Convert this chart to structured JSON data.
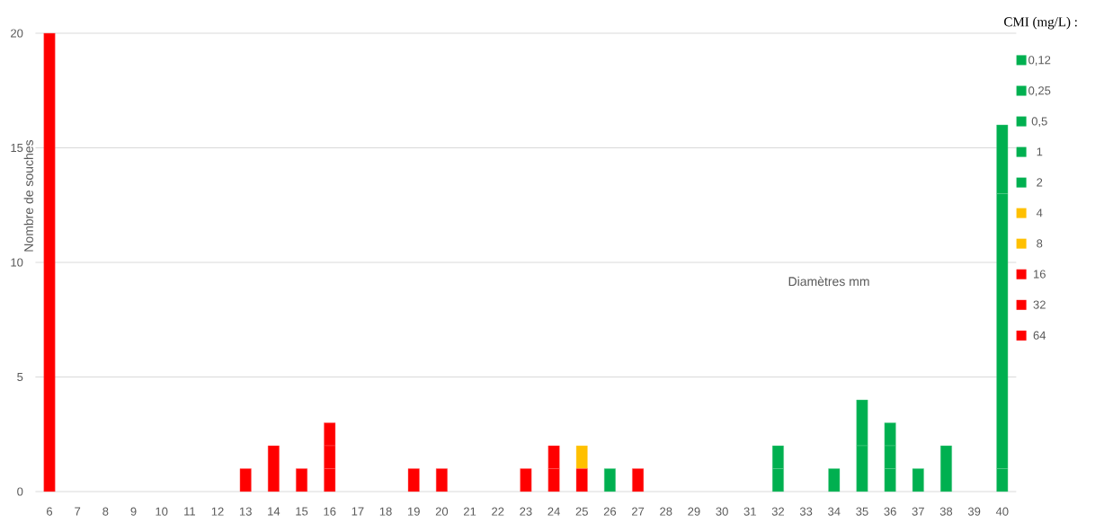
{
  "chart_data": {
    "type": "bar",
    "stacked": true,
    "xlabel": "Diamètres mm",
    "ylabel": "Nombre de souches",
    "legend_title": "CMI (mg/L) :",
    "categories": [
      "6",
      "7",
      "8",
      "9",
      "10",
      "11",
      "12",
      "13",
      "14",
      "15",
      "16",
      "17",
      "18",
      "19",
      "20",
      "21",
      "22",
      "23",
      "24",
      "25",
      "26",
      "27",
      "28",
      "29",
      "30",
      "31",
      "32",
      "33",
      "34",
      "35",
      "36",
      "37",
      "38",
      "39",
      "40"
    ],
    "ylim": [
      0,
      20
    ],
    "yticks": [
      0,
      5,
      10,
      15,
      20
    ],
    "grid": "y",
    "legend": "right",
    "series": [
      {
        "name": "64",
        "color": "#ff0000",
        "values": [
          20,
          null,
          null,
          null,
          null,
          null,
          null,
          1,
          2,
          null,
          1,
          null,
          null,
          null,
          null,
          null,
          null,
          null,
          null,
          null,
          null,
          null,
          null,
          null,
          null,
          null,
          null,
          null,
          null,
          null,
          null,
          null,
          null,
          null,
          null
        ]
      },
      {
        "name": "32",
        "color": "#ff0000",
        "values": [
          null,
          null,
          null,
          null,
          null,
          null,
          null,
          null,
          null,
          1,
          1,
          null,
          null,
          1,
          1,
          null,
          null,
          null,
          1,
          null,
          null,
          null,
          null,
          null,
          null,
          null,
          null,
          null,
          null,
          null,
          null,
          null,
          null,
          null,
          null
        ]
      },
      {
        "name": "16",
        "color": "#ff0000",
        "values": [
          null,
          null,
          null,
          null,
          null,
          null,
          null,
          null,
          null,
          null,
          1,
          null,
          null,
          null,
          null,
          null,
          null,
          1,
          1,
          1,
          null,
          1,
          null,
          null,
          null,
          null,
          null,
          null,
          null,
          null,
          null,
          null,
          null,
          null,
          null
        ]
      },
      {
        "name": "8",
        "color": "#ffc000",
        "values": [
          null,
          null,
          null,
          null,
          null,
          null,
          null,
          null,
          null,
          null,
          null,
          null,
          null,
          null,
          null,
          null,
          null,
          null,
          null,
          1,
          null,
          null,
          null,
          null,
          null,
          null,
          null,
          null,
          null,
          null,
          null,
          null,
          null,
          null,
          null
        ]
      },
      {
        "name": "4",
        "color": "#ffc000",
        "values": [
          null,
          null,
          null,
          null,
          null,
          null,
          null,
          null,
          null,
          null,
          null,
          null,
          null,
          null,
          null,
          null,
          null,
          null,
          null,
          null,
          null,
          null,
          null,
          null,
          null,
          null,
          null,
          null,
          null,
          null,
          null,
          null,
          null,
          null,
          null
        ]
      },
      {
        "name": "2",
        "color": "#00b050",
        "values": [
          null,
          null,
          null,
          null,
          null,
          null,
          null,
          null,
          null,
          null,
          null,
          null,
          null,
          null,
          null,
          null,
          null,
          null,
          null,
          null,
          1,
          null,
          null,
          null,
          null,
          null,
          1,
          null,
          null,
          null,
          null,
          null,
          null,
          null,
          null
        ]
      },
      {
        "name": "1",
        "color": "#00b050",
        "values": [
          null,
          null,
          null,
          null,
          null,
          null,
          null,
          null,
          null,
          null,
          null,
          null,
          null,
          null,
          null,
          null,
          null,
          null,
          null,
          null,
          null,
          null,
          null,
          null,
          null,
          null,
          1,
          null,
          1,
          2,
          1,
          null,
          null,
          null,
          null
        ]
      },
      {
        "name": "0,5",
        "color": "#00b050",
        "values": [
          null,
          null,
          null,
          null,
          null,
          null,
          null,
          null,
          null,
          null,
          null,
          null,
          null,
          null,
          null,
          null,
          null,
          null,
          null,
          null,
          null,
          null,
          null,
          null,
          null,
          null,
          null,
          null,
          null,
          2,
          1,
          1,
          null,
          null,
          1
        ]
      },
      {
        "name": "0,25",
        "color": "#00b050",
        "values": [
          null,
          null,
          null,
          null,
          null,
          null,
          null,
          null,
          null,
          null,
          null,
          null,
          null,
          null,
          null,
          null,
          null,
          null,
          null,
          null,
          null,
          null,
          null,
          null,
          null,
          null,
          null,
          null,
          null,
          null,
          1,
          null,
          2,
          null,
          12
        ]
      },
      {
        "name": "0,12",
        "color": "#00b050",
        "values": [
          null,
          null,
          null,
          null,
          null,
          null,
          null,
          null,
          null,
          null,
          null,
          null,
          null,
          null,
          null,
          null,
          null,
          null,
          null,
          null,
          null,
          null,
          null,
          null,
          null,
          null,
          null,
          null,
          null,
          null,
          null,
          null,
          null,
          null,
          3
        ]
      }
    ]
  }
}
